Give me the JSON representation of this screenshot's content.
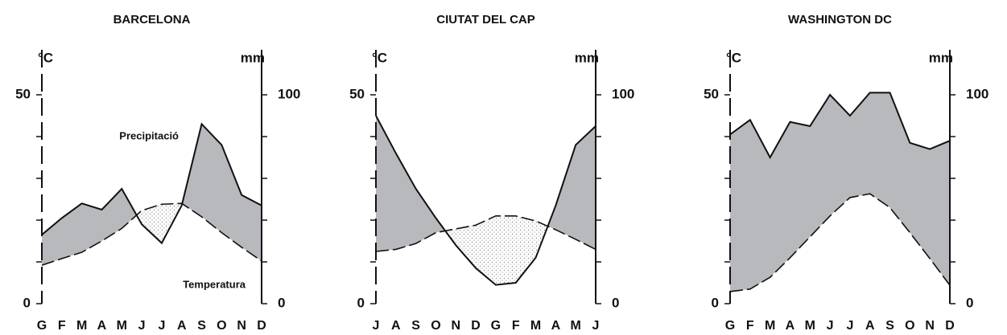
{
  "chart_data": [
    {
      "type": "line",
      "title": "BARCELONA",
      "y_label": "°C",
      "y2_label": "mm",
      "categories": [
        "G",
        "F",
        "M",
        "A",
        "M",
        "J",
        "J",
        "A",
        "S",
        "O",
        "N",
        "D"
      ],
      "series": [
        {
          "name": "Precipitació",
          "axis": "y2",
          "color": "#111111",
          "values": [
            33,
            41,
            48,
            45,
            55,
            38,
            29,
            47,
            86,
            76,
            52,
            47
          ]
        },
        {
          "name": "Temperatura",
          "color": "#111111",
          "values": [
            9.2,
            10.8,
            12.3,
            15,
            18,
            22.3,
            23.8,
            24,
            20.8,
            17,
            13.5,
            10.2
          ]
        }
      ],
      "ylim": [
        0,
        50
      ],
      "yticks": [
        0,
        50
      ],
      "minor_yticks": [
        10,
        20,
        30,
        40
      ],
      "y2lim": [
        0,
        100
      ],
      "y2ticks": [
        0,
        100
      ],
      "minor_y2ticks": [
        20,
        40,
        60,
        80
      ]
    },
    {
      "type": "line",
      "title": "CIUTAT DEL CAP",
      "y_label": "°C",
      "y2_label": "mm",
      "categories": [
        "J",
        "A",
        "S",
        "O",
        "N",
        "D",
        "G",
        "F",
        "M",
        "A",
        "M",
        "J"
      ],
      "series": [
        {
          "axis": "y2",
          "color": "#111111",
          "values": [
            90,
            72,
            55,
            41,
            28,
            17,
            9,
            10,
            22,
            47,
            76,
            85
          ]
        },
        {
          "color": "#111111",
          "values": [
            12.5,
            13,
            14.4,
            17,
            17.9,
            18.8,
            21,
            21,
            19.8,
            17.7,
            15.4,
            13
          ]
        }
      ],
      "ylim": [
        0,
        50
      ],
      "yticks": [
        0,
        50
      ],
      "minor_yticks": [
        10,
        20,
        30,
        40
      ],
      "y2lim": [
        0,
        100
      ],
      "y2ticks": [
        0,
        100
      ],
      "minor_y2ticks": [
        20,
        40,
        60,
        80
      ]
    },
    {
      "type": "line",
      "title": "WASHINGTON DC",
      "y_label": "°C",
      "y2_label": "mm",
      "categories": [
        "G",
        "F",
        "M",
        "A",
        "M",
        "J",
        "J",
        "A",
        "S",
        "O",
        "N",
        "D"
      ],
      "series": [
        {
          "axis": "y2",
          "color": "#111111",
          "values": [
            81,
            88,
            70,
            87,
            85,
            100,
            90,
            101,
            101,
            77,
            74,
            78
          ]
        },
        {
          "color": "#111111",
          "values": [
            2.9,
            3.5,
            6.3,
            11,
            16,
            21,
            25.4,
            26.3,
            23,
            17,
            10.8,
            4.4
          ]
        }
      ],
      "ylim": [
        0,
        50
      ],
      "yticks": [
        0,
        50
      ],
      "minor_yticks": [
        10,
        20,
        30,
        40
      ],
      "y2lim": [
        0,
        100
      ],
      "y2ticks": [
        0,
        100
      ],
      "minor_y2ticks": [
        20,
        40,
        60,
        80
      ]
    }
  ]
}
